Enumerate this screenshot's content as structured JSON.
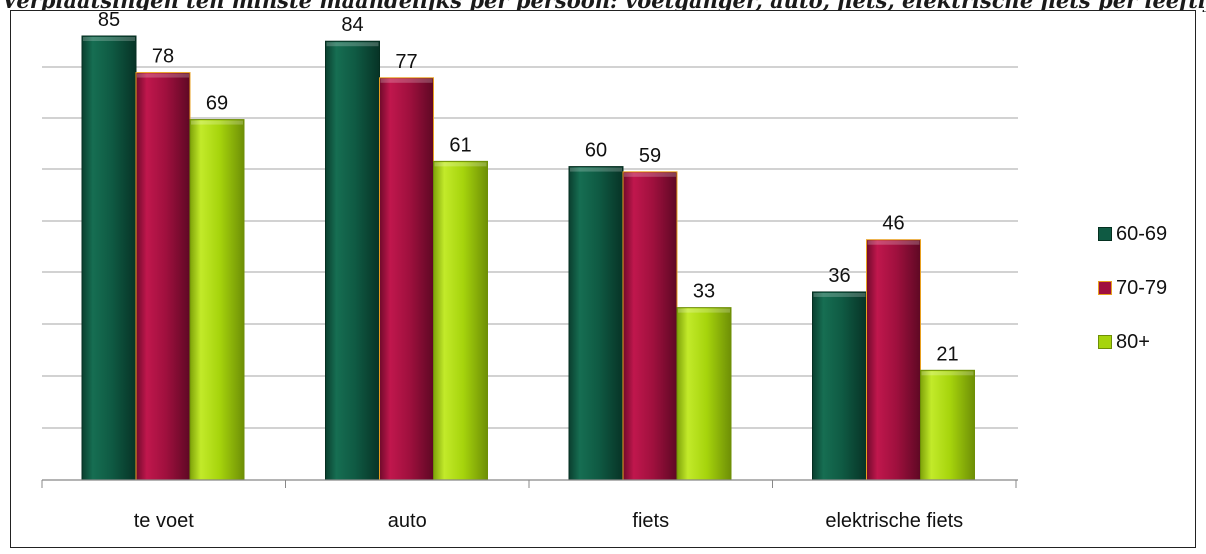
{
  "title": "Verplaatsingen ten minste maandelijks per persoon: voetganger, auto, fiets, elektrische fiets per leeftijdscategorie (%)",
  "chart_data": {
    "type": "bar",
    "title": "Verplaatsingen ten minste maandelijks per persoon: voetganger, auto, fiets, elektrische fiets per leeftijdscategorie (%)",
    "categories": [
      "te voet",
      "auto",
      "fiets",
      "elektrische fiets"
    ],
    "series": [
      {
        "name": "60-69",
        "values": [
          85,
          84,
          60,
          36
        ],
        "color": "#0f5a43"
      },
      {
        "name": "70-79",
        "values": [
          78,
          77,
          59,
          46
        ],
        "color": "#a0103e"
      },
      {
        "name": "80+",
        "values": [
          69,
          61,
          33,
          21
        ],
        "color": "#a6d40c"
      }
    ],
    "ylim": [
      0,
      85
    ],
    "grid": true,
    "legend": "right",
    "xlabel": "",
    "ylabel": ""
  }
}
